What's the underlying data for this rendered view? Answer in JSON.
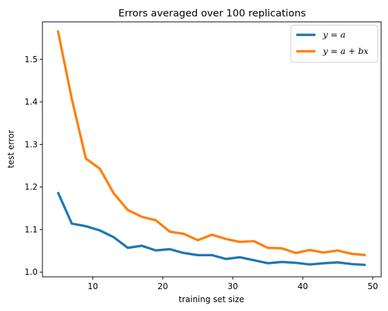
{
  "chart_data": {
    "type": "line",
    "title": "Errors averaged over 100 replications",
    "xlabel": "training set size",
    "ylabel": "test error",
    "xlim": [
      2.8,
      51.2
    ],
    "ylim": [
      0.989,
      1.588
    ],
    "xticks": [
      10,
      20,
      30,
      40,
      50
    ],
    "yticks": [
      1.0,
      1.1,
      1.2,
      1.3,
      1.4,
      1.5
    ],
    "ytick_labels": [
      "1.0",
      "1.1",
      "1.2",
      "1.3",
      "1.4",
      "1.5"
    ],
    "grid": false,
    "legend": "top-right",
    "x": [
      5,
      7,
      9,
      11,
      13,
      15,
      17,
      19,
      21,
      23,
      25,
      27,
      29,
      31,
      33,
      35,
      37,
      39,
      41,
      43,
      45,
      47,
      49
    ],
    "series": [
      {
        "name": "y = a",
        "color": "#1f77b4",
        "values": [
          1.188,
          1.114,
          1.108,
          1.098,
          1.082,
          1.057,
          1.062,
          1.051,
          1.054,
          1.045,
          1.04,
          1.04,
          1.031,
          1.035,
          1.028,
          1.021,
          1.024,
          1.022,
          1.018,
          1.021,
          1.023,
          1.019,
          1.017
        ]
      },
      {
        "name": "y = a + bx",
        "color": "#ff7f0e",
        "values": [
          1.568,
          1.407,
          1.267,
          1.243,
          1.185,
          1.146,
          1.13,
          1.122,
          1.095,
          1.09,
          1.075,
          1.088,
          1.078,
          1.071,
          1.073,
          1.057,
          1.056,
          1.045,
          1.052,
          1.046,
          1.051,
          1.043,
          1.04
        ]
      }
    ]
  }
}
